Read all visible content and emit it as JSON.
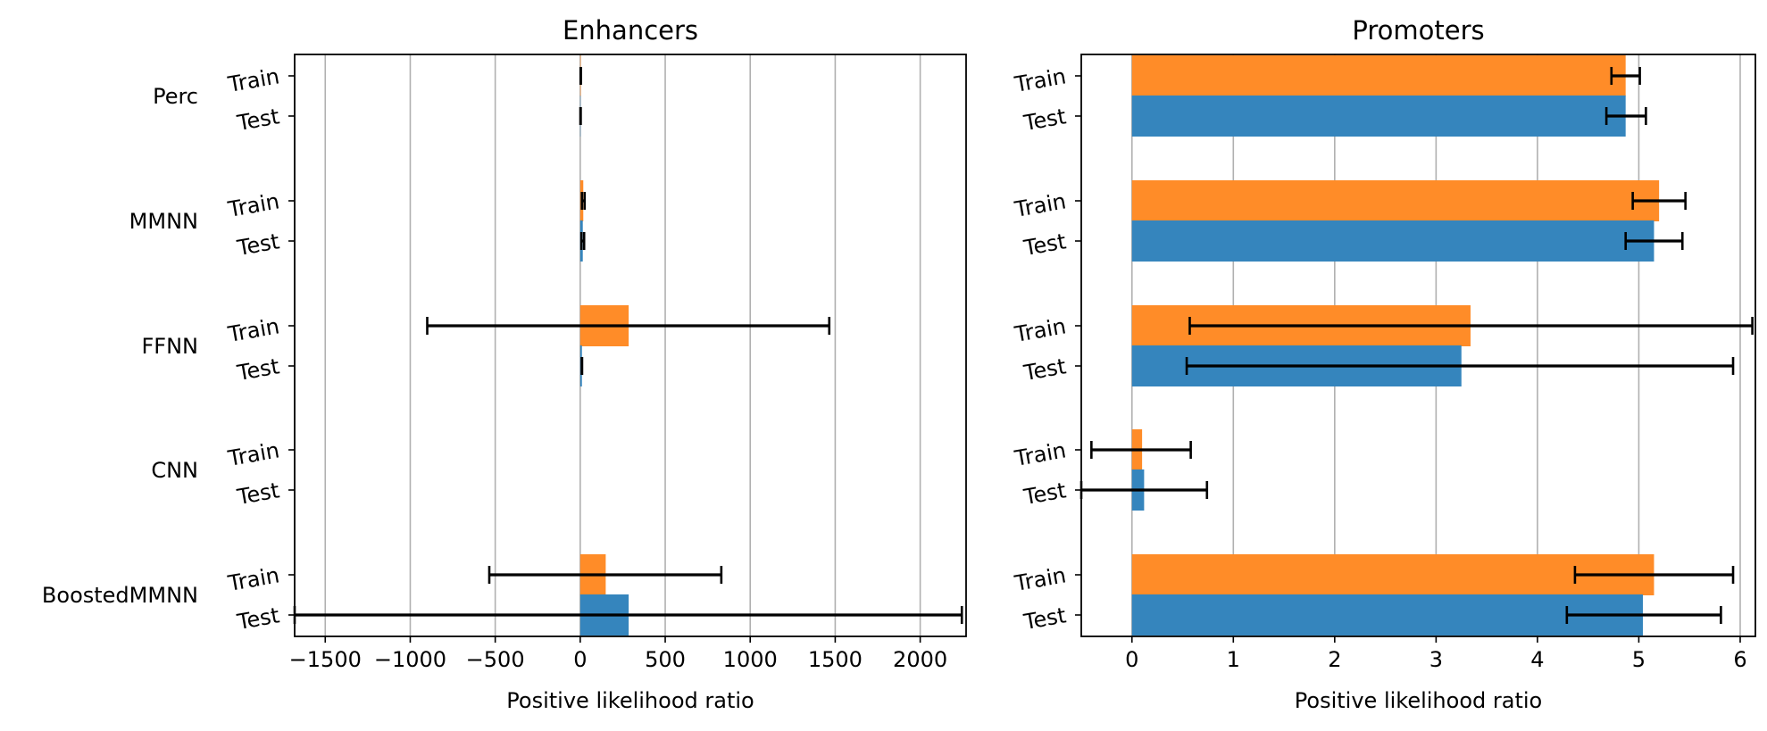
{
  "chart_data": [
    {
      "type": "bar",
      "orientation": "horizontal",
      "title": "Enhancers",
      "xlabel": "Positive likelihood ratio",
      "xlim": [
        -1680,
        2270
      ],
      "xticks": [
        -1500,
        -1000,
        -500,
        0,
        500,
        1000,
        1500,
        2000
      ],
      "xtick_labels": [
        "−1500",
        "−1000",
        "−500",
        "0",
        "500",
        "1000",
        "1500",
        "2000"
      ],
      "grid": "vertical",
      "groups": [
        "Perc",
        "MMNN",
        "FFNN",
        "CNN",
        "BoostedMMNN"
      ],
      "subgroups": [
        "Train",
        "Test"
      ],
      "series": [
        {
          "subgroup": "Train",
          "color": "#ff8c28",
          "values": [
            3,
            18,
            285,
            0,
            150
          ],
          "err_low": [
            0,
            8,
            1185,
            0,
            685
          ],
          "err_high": [
            0,
            8,
            1180,
            0,
            680
          ]
        },
        {
          "subgroup": "Test",
          "color": "#3585bd",
          "values": [
            2,
            15,
            10,
            0,
            285
          ],
          "err_low": [
            0,
            8,
            0,
            0,
            1965
          ],
          "err_high": [
            0,
            8,
            0,
            0,
            1960
          ]
        }
      ]
    },
    {
      "type": "bar",
      "orientation": "horizontal",
      "title": "Promoters",
      "xlabel": "Positive likelihood ratio",
      "xlim": [
        -0.5,
        6.15
      ],
      "xticks": [
        0,
        1,
        2,
        3,
        4,
        5,
        6
      ],
      "xtick_labels": [
        "0",
        "1",
        "2",
        "3",
        "4",
        "5",
        "6"
      ],
      "grid": "vertical",
      "groups": [
        "Perc",
        "MMNN",
        "FFNN",
        "CNN",
        "BoostedMMNN"
      ],
      "subgroups": [
        "Train",
        "Test"
      ],
      "series": [
        {
          "subgroup": "Train",
          "color": "#ff8c28",
          "values": [
            4.87,
            5.2,
            3.34,
            0.1,
            5.15
          ],
          "err_low": [
            0.14,
            0.26,
            2.77,
            0.5,
            0.78
          ],
          "err_high": [
            0.14,
            0.26,
            2.78,
            0.48,
            0.78
          ]
        },
        {
          "subgroup": "Test",
          "color": "#3585bd",
          "values": [
            4.87,
            5.15,
            3.25,
            0.12,
            5.04
          ],
          "err_low": [
            0.19,
            0.28,
            2.71,
            0.62,
            0.75
          ],
          "err_high": [
            0.2,
            0.28,
            2.68,
            0.62,
            0.77
          ]
        }
      ]
    }
  ]
}
